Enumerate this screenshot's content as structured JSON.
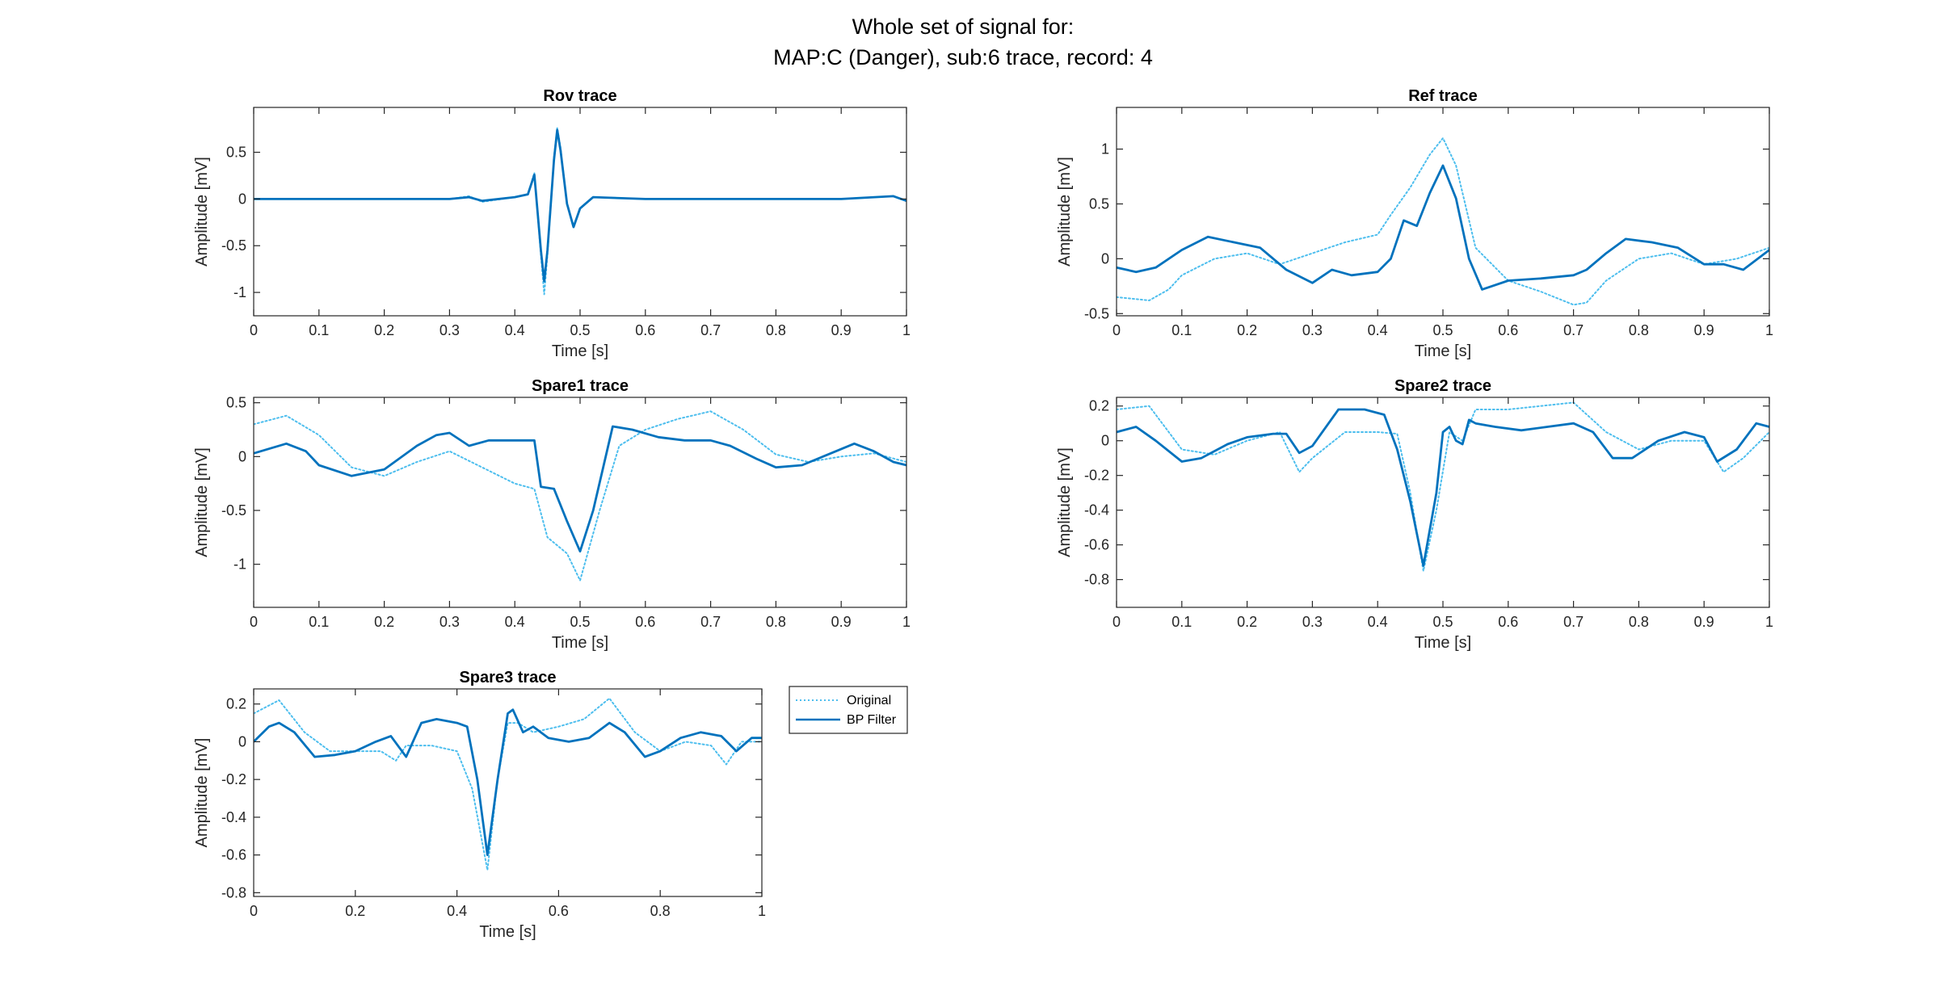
{
  "figure": {
    "title_line1": "Whole set of signal for:",
    "title_line2": "MAP:C (Danger), sub:6 trace, record: 4"
  },
  "legend": {
    "original_label": "Original",
    "filtered_label": "BP Filter"
  },
  "colors": {
    "filtered": "#0072BD",
    "original": "#4DBEEE",
    "axis": "#262626",
    "background": "#FFFFFF"
  },
  "chart_data": [
    {
      "type": "line",
      "title": "Rov trace",
      "xlabel": "Time [s]",
      "ylabel": "Amplitude [mV]",
      "xlim": [
        0,
        1
      ],
      "ylim": [
        -1.25,
        0.98
      ],
      "xticks": [
        0,
        0.1,
        0.2,
        0.3,
        0.4,
        0.5,
        0.6,
        0.7,
        0.8,
        0.9,
        1
      ],
      "yticks": [
        -1,
        -0.5,
        0,
        0.5
      ],
      "series": [
        {
          "name": "Original",
          "style": "dotted",
          "x": [
            0,
            0.1,
            0.2,
            0.3,
            0.33,
            0.35,
            0.4,
            0.42,
            0.43,
            0.44,
            0.445,
            0.45,
            0.46,
            0.465,
            0.47,
            0.48,
            0.49,
            0.5,
            0.52,
            0.6,
            0.7,
            0.8,
            0.9,
            0.98,
            1
          ],
          "y": [
            0,
            0,
            0,
            0,
            0.03,
            -0.03,
            0.02,
            0.05,
            0.28,
            -0.6,
            -1.02,
            -0.6,
            0.45,
            0.76,
            0.55,
            -0.05,
            -0.3,
            -0.1,
            0.02,
            0,
            0,
            0,
            0,
            0.03,
            -0.02
          ]
        },
        {
          "name": "BP Filter",
          "style": "solid",
          "x": [
            0,
            0.1,
            0.2,
            0.3,
            0.33,
            0.35,
            0.4,
            0.42,
            0.43,
            0.44,
            0.445,
            0.45,
            0.46,
            0.465,
            0.47,
            0.48,
            0.49,
            0.5,
            0.52,
            0.6,
            0.7,
            0.8,
            0.9,
            0.98,
            1
          ],
          "y": [
            0,
            0,
            0,
            0,
            0.02,
            -0.02,
            0.02,
            0.05,
            0.26,
            -0.55,
            -0.88,
            -0.55,
            0.42,
            0.74,
            0.52,
            -0.05,
            -0.3,
            -0.1,
            0.02,
            0,
            0,
            0,
            0,
            0.03,
            -0.02
          ]
        }
      ]
    },
    {
      "type": "line",
      "title": "Ref trace",
      "xlabel": "Time [s]",
      "ylabel": "Amplitude [mV]",
      "xlim": [
        0,
        1
      ],
      "ylim": [
        -0.52,
        1.38
      ],
      "xticks": [
        0,
        0.1,
        0.2,
        0.3,
        0.4,
        0.5,
        0.6,
        0.7,
        0.8,
        0.9,
        1
      ],
      "yticks": [
        -0.5,
        0,
        0.5,
        1
      ],
      "series": [
        {
          "name": "Original",
          "style": "dotted",
          "x": [
            0,
            0.05,
            0.08,
            0.1,
            0.15,
            0.2,
            0.25,
            0.3,
            0.35,
            0.4,
            0.42,
            0.45,
            0.48,
            0.5,
            0.52,
            0.55,
            0.6,
            0.65,
            0.7,
            0.72,
            0.75,
            0.8,
            0.85,
            0.9,
            0.95,
            1
          ],
          "y": [
            -0.35,
            -0.38,
            -0.28,
            -0.15,
            0,
            0.05,
            -0.05,
            0.05,
            0.15,
            0.22,
            0.4,
            0.65,
            0.95,
            1.1,
            0.85,
            0.1,
            -0.2,
            -0.3,
            -0.42,
            -0.4,
            -0.2,
            0,
            0.05,
            -0.05,
            0,
            0.1
          ]
        },
        {
          "name": "BP Filter",
          "style": "solid",
          "x": [
            0,
            0.03,
            0.06,
            0.1,
            0.14,
            0.18,
            0.22,
            0.26,
            0.3,
            0.33,
            0.36,
            0.4,
            0.42,
            0.44,
            0.46,
            0.48,
            0.5,
            0.52,
            0.54,
            0.56,
            0.6,
            0.65,
            0.7,
            0.72,
            0.75,
            0.78,
            0.82,
            0.86,
            0.9,
            0.93,
            0.96,
            1
          ],
          "y": [
            -0.08,
            -0.12,
            -0.08,
            0.08,
            0.2,
            0.15,
            0.1,
            -0.1,
            -0.22,
            -0.1,
            -0.15,
            -0.12,
            0,
            0.35,
            0.3,
            0.6,
            0.85,
            0.55,
            0,
            -0.28,
            -0.2,
            -0.18,
            -0.15,
            -0.1,
            0.05,
            0.18,
            0.15,
            0.1,
            -0.05,
            -0.05,
            -0.1,
            0.08
          ]
        }
      ]
    },
    {
      "type": "line",
      "title": "Spare1 trace",
      "xlabel": "Time [s]",
      "ylabel": "Amplitude [mV]",
      "xlim": [
        0,
        1
      ],
      "ylim": [
        -1.4,
        0.55
      ],
      "xticks": [
        0,
        0.1,
        0.2,
        0.3,
        0.4,
        0.5,
        0.6,
        0.7,
        0.8,
        0.9,
        1
      ],
      "yticks": [
        -1,
        -0.5,
        0,
        0.5
      ],
      "series": [
        {
          "name": "Original",
          "style": "dotted",
          "x": [
            0,
            0.05,
            0.1,
            0.15,
            0.2,
            0.25,
            0.3,
            0.35,
            0.4,
            0.43,
            0.45,
            0.48,
            0.5,
            0.53,
            0.56,
            0.6,
            0.65,
            0.7,
            0.75,
            0.8,
            0.85,
            0.9,
            0.95,
            1
          ],
          "y": [
            0.3,
            0.38,
            0.2,
            -0.1,
            -0.18,
            -0.05,
            0.05,
            -0.1,
            -0.25,
            -0.3,
            -0.75,
            -0.9,
            -1.15,
            -0.5,
            0.1,
            0.25,
            0.35,
            0.42,
            0.25,
            0.02,
            -0.05,
            0,
            0.03,
            -0.05
          ]
        },
        {
          "name": "BP Filter",
          "style": "solid",
          "x": [
            0,
            0.05,
            0.08,
            0.1,
            0.15,
            0.2,
            0.25,
            0.28,
            0.3,
            0.33,
            0.36,
            0.4,
            0.43,
            0.44,
            0.46,
            0.48,
            0.5,
            0.52,
            0.55,
            0.58,
            0.62,
            0.66,
            0.7,
            0.73,
            0.77,
            0.8,
            0.84,
            0.88,
            0.92,
            0.95,
            0.98,
            1
          ],
          "y": [
            0.03,
            0.12,
            0.05,
            -0.08,
            -0.18,
            -0.12,
            0.1,
            0.2,
            0.22,
            0.1,
            0.15,
            0.15,
            0.15,
            -0.28,
            -0.3,
            -0.6,
            -0.88,
            -0.5,
            0.28,
            0.25,
            0.18,
            0.15,
            0.15,
            0.1,
            -0.02,
            -0.1,
            -0.08,
            0.02,
            0.12,
            0.05,
            -0.05,
            -0.08
          ]
        }
      ]
    },
    {
      "type": "line",
      "title": "Spare2 trace",
      "xlabel": "Time [s]",
      "ylabel": "Amplitude [mV]",
      "xlim": [
        0,
        1
      ],
      "ylim": [
        -0.96,
        0.25
      ],
      "xticks": [
        0,
        0.1,
        0.2,
        0.3,
        0.4,
        0.5,
        0.6,
        0.7,
        0.8,
        0.9,
        1
      ],
      "yticks": [
        -0.8,
        -0.6,
        -0.4,
        -0.2,
        0,
        0.2
      ],
      "series": [
        {
          "name": "Original",
          "style": "dotted",
          "x": [
            0,
            0.05,
            0.1,
            0.15,
            0.2,
            0.25,
            0.28,
            0.3,
            0.35,
            0.4,
            0.43,
            0.45,
            0.47,
            0.49,
            0.51,
            0.53,
            0.55,
            0.6,
            0.65,
            0.7,
            0.75,
            0.8,
            0.85,
            0.9,
            0.93,
            0.96,
            1
          ],
          "y": [
            0.18,
            0.2,
            -0.05,
            -0.08,
            0,
            0.05,
            -0.18,
            -0.1,
            0.05,
            0.05,
            0.04,
            -0.3,
            -0.75,
            -0.4,
            0.05,
            0,
            0.18,
            0.18,
            0.2,
            0.22,
            0.05,
            -0.05,
            0,
            0,
            -0.18,
            -0.1,
            0.05
          ]
        },
        {
          "name": "BP Filter",
          "style": "solid",
          "x": [
            0,
            0.03,
            0.06,
            0.1,
            0.13,
            0.17,
            0.2,
            0.24,
            0.26,
            0.28,
            0.3,
            0.34,
            0.38,
            0.41,
            0.43,
            0.45,
            0.47,
            0.49,
            0.5,
            0.51,
            0.52,
            0.53,
            0.54,
            0.55,
            0.58,
            0.62,
            0.66,
            0.7,
            0.73,
            0.76,
            0.79,
            0.83,
            0.87,
            0.9,
            0.92,
            0.95,
            0.98,
            1
          ],
          "y": [
            0.05,
            0.08,
            0,
            -0.12,
            -0.1,
            -0.02,
            0.02,
            0.04,
            0.04,
            -0.07,
            -0.03,
            0.18,
            0.18,
            0.15,
            -0.05,
            -0.35,
            -0.72,
            -0.3,
            0.05,
            0.08,
            0,
            -0.02,
            0.12,
            0.1,
            0.08,
            0.06,
            0.08,
            0.1,
            0.05,
            -0.1,
            -0.1,
            0,
            0.05,
            0.02,
            -0.12,
            -0.05,
            0.1,
            0.08
          ]
        }
      ]
    },
    {
      "type": "line",
      "title": "Spare3 trace",
      "xlabel": "Time [s]",
      "ylabel": "Amplitude [mV]",
      "xlim": [
        0,
        1
      ],
      "ylim": [
        -0.82,
        0.28
      ],
      "xticks": [
        0,
        0.2,
        0.4,
        0.6,
        0.8,
        1
      ],
      "yticks": [
        -0.8,
        -0.6,
        -0.4,
        -0.2,
        0,
        0.2
      ],
      "series": [
        {
          "name": "Original",
          "style": "dotted",
          "x": [
            0,
            0.05,
            0.1,
            0.15,
            0.2,
            0.25,
            0.28,
            0.3,
            0.35,
            0.4,
            0.43,
            0.46,
            0.48,
            0.5,
            0.52,
            0.55,
            0.6,
            0.65,
            0.7,
            0.75,
            0.8,
            0.85,
            0.9,
            0.93,
            0.96,
            1
          ],
          "y": [
            0.15,
            0.22,
            0.05,
            -0.05,
            -0.05,
            -0.05,
            -0.1,
            -0.02,
            -0.02,
            -0.05,
            -0.25,
            -0.68,
            -0.2,
            0.1,
            0.1,
            0.05,
            0.08,
            0.12,
            0.23,
            0.05,
            -0.05,
            0,
            -0.02,
            -0.12,
            0,
            0
          ]
        },
        {
          "name": "BP Filter",
          "style": "solid",
          "x": [
            0,
            0.03,
            0.05,
            0.08,
            0.12,
            0.16,
            0.2,
            0.24,
            0.27,
            0.3,
            0.33,
            0.36,
            0.4,
            0.42,
            0.44,
            0.46,
            0.48,
            0.5,
            0.51,
            0.53,
            0.55,
            0.58,
            0.62,
            0.66,
            0.7,
            0.73,
            0.77,
            0.8,
            0.84,
            0.88,
            0.92,
            0.95,
            0.98,
            1
          ],
          "y": [
            0,
            0.08,
            0.1,
            0.05,
            -0.08,
            -0.07,
            -0.05,
            0,
            0.03,
            -0.08,
            0.1,
            0.12,
            0.1,
            0.08,
            -0.2,
            -0.6,
            -0.2,
            0.15,
            0.17,
            0.05,
            0.08,
            0.02,
            0,
            0.02,
            0.1,
            0.05,
            -0.08,
            -0.05,
            0.02,
            0.05,
            0.03,
            -0.05,
            0.02,
            0.02
          ]
        }
      ]
    }
  ]
}
